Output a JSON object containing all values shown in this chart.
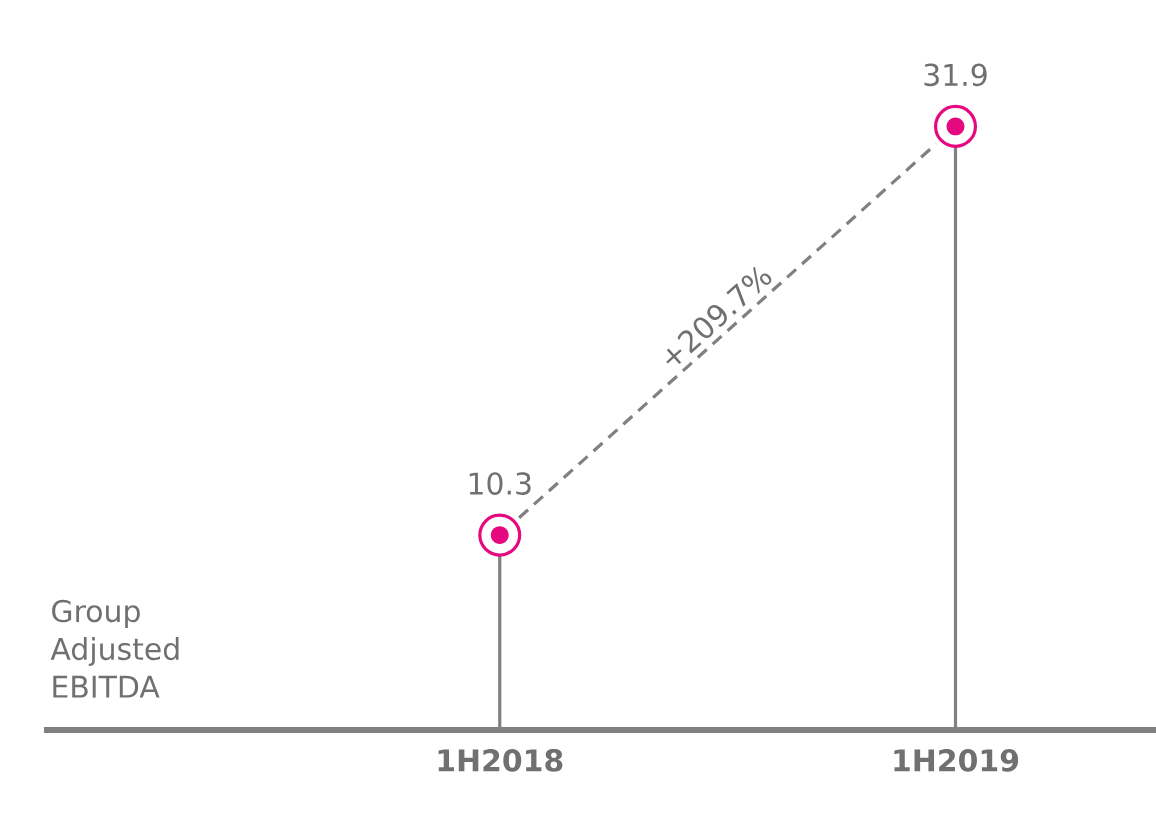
{
  "chart_data": {
    "type": "lollipop",
    "ylabel": "Group Adjusted EBITDA",
    "categories": [
      "1H2018",
      "1H2019"
    ],
    "values": [
      10.3,
      31.9
    ],
    "color": "#e5087e",
    "data_labels": true,
    "annotations": [
      "+209.7%"
    ]
  }
}
